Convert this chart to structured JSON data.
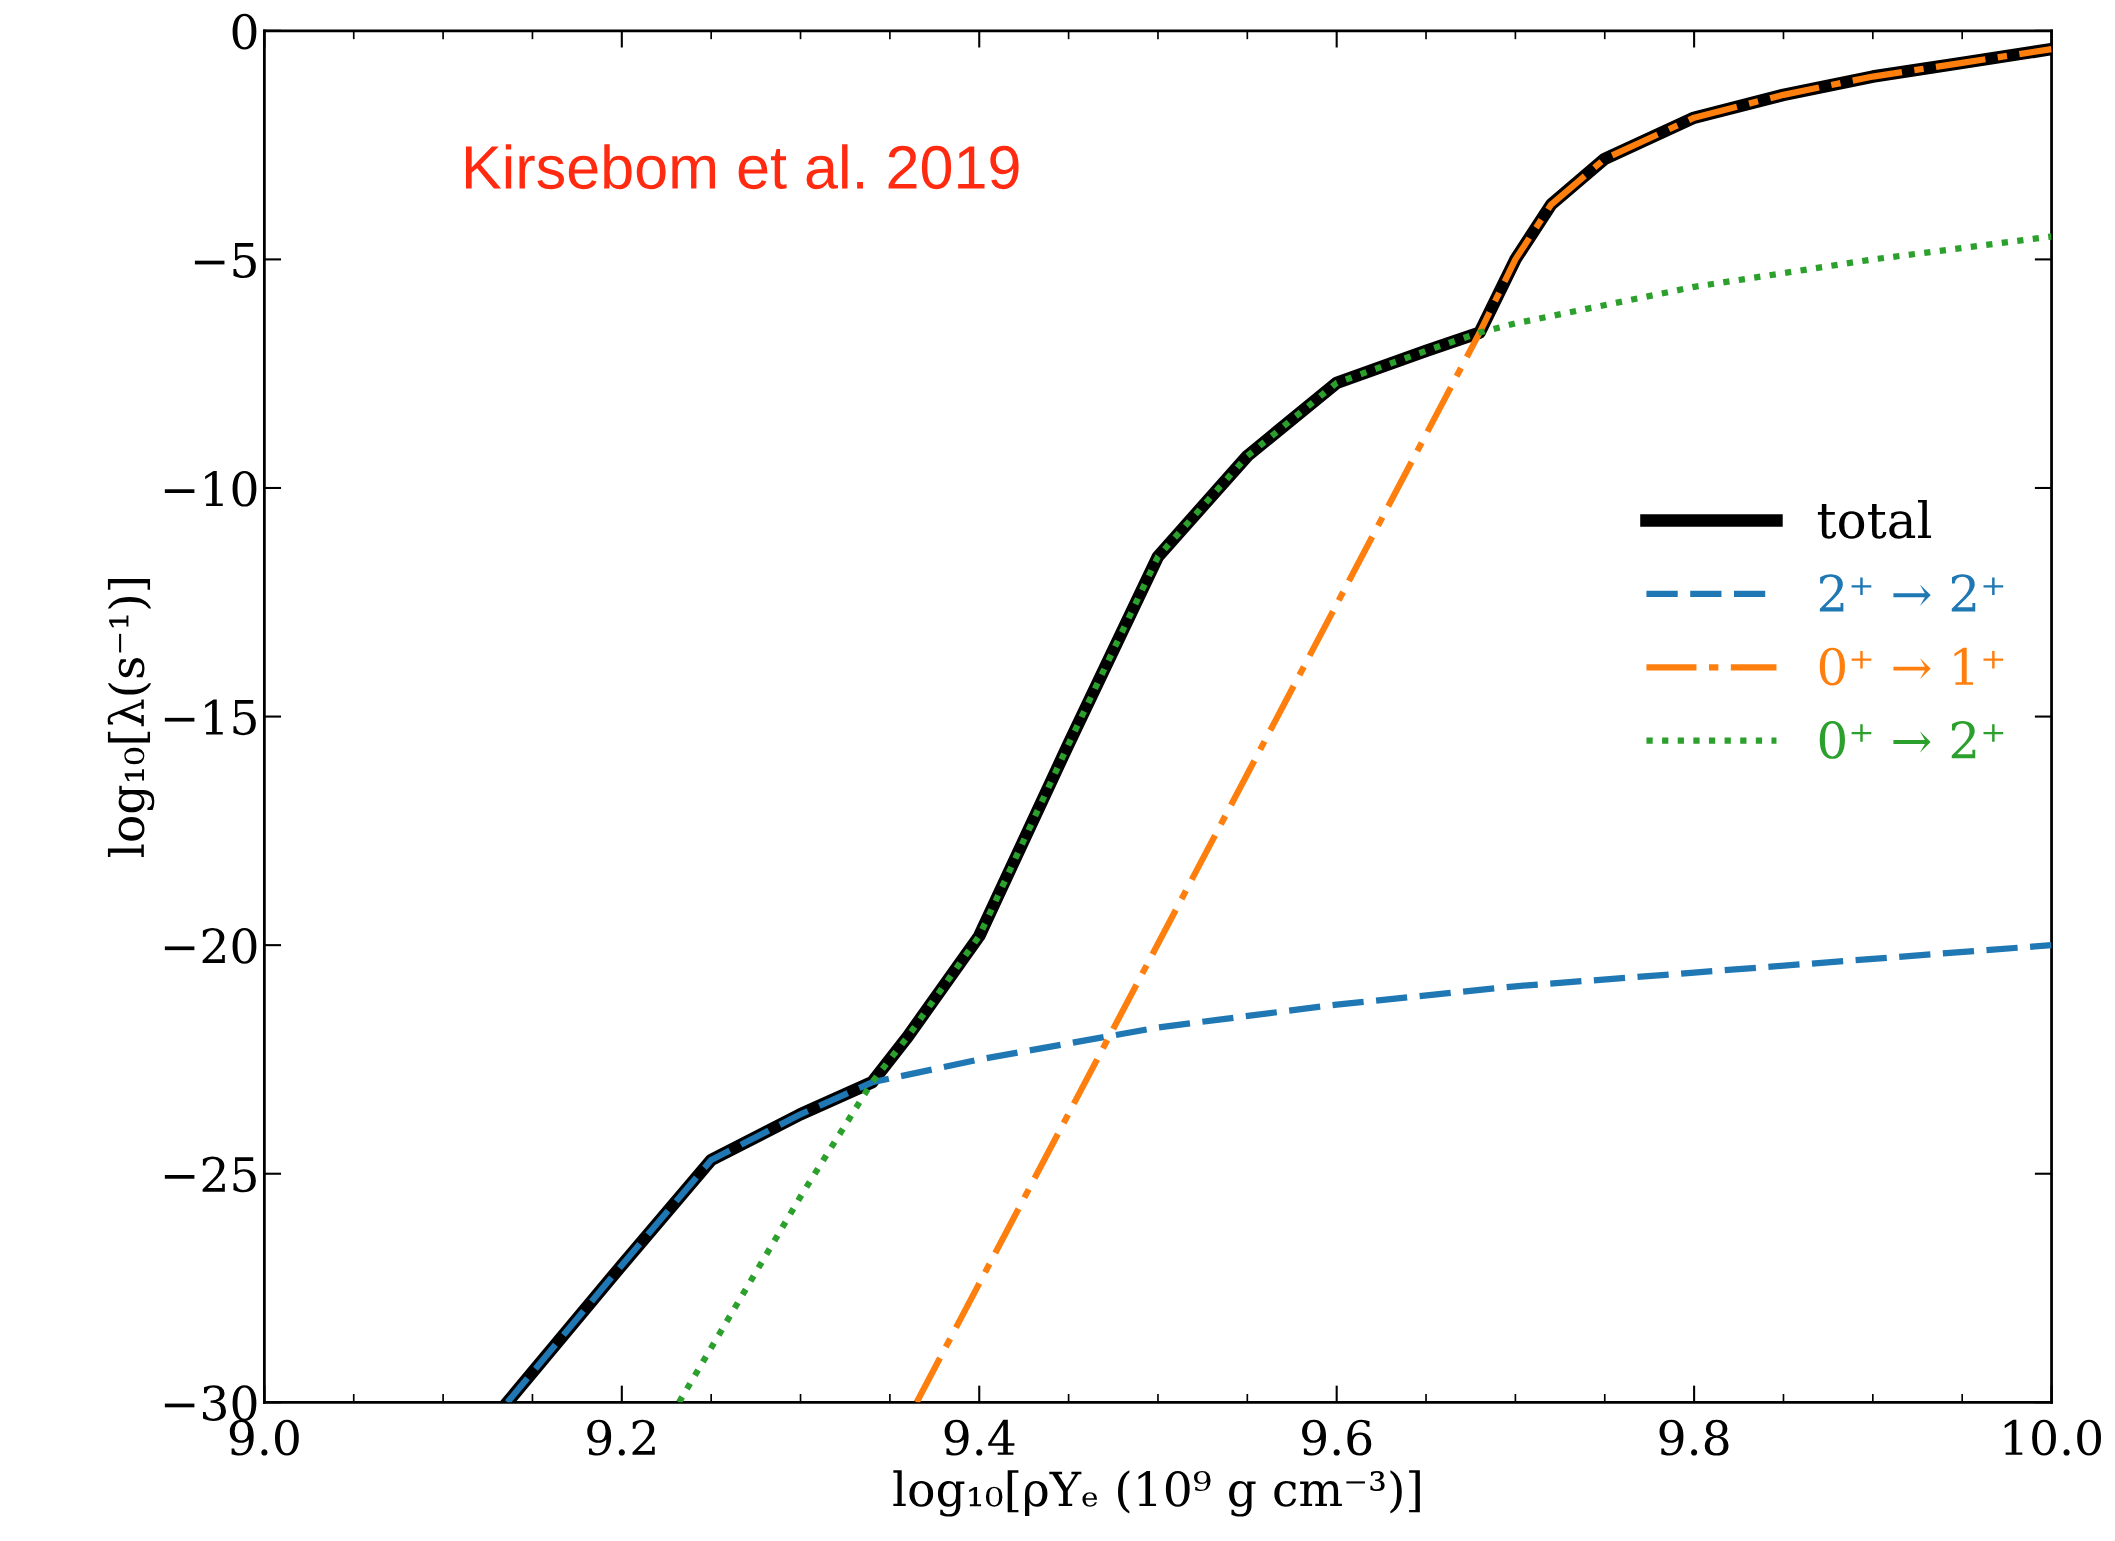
{
  "chart_data": {
    "type": "line",
    "xlabel": "log₁₀[ρYₑ (10⁹ g cm⁻³)]",
    "ylabel": "log₁₀[λ(s⁻¹)]",
    "annotations": [
      "Kirsebom et al. 2019"
    ],
    "xlim": [
      9.0,
      10.0
    ],
    "ylim": [
      -30,
      0
    ],
    "xticks": [
      {
        "value": 9.0,
        "label": "9.0"
      },
      {
        "value": 9.2,
        "label": "9.2"
      },
      {
        "value": 9.4,
        "label": "9.4"
      },
      {
        "value": 9.6,
        "label": "9.6"
      },
      {
        "value": 9.8,
        "label": "9.8"
      },
      {
        "value": 10.0,
        "label": "10.0"
      }
    ],
    "yticks": [
      {
        "value": -30,
        "label": "−30"
      },
      {
        "value": -25,
        "label": "−25"
      },
      {
        "value": -20,
        "label": "−20"
      },
      {
        "value": -15,
        "label": "−15"
      },
      {
        "value": -10,
        "label": "−10"
      },
      {
        "value": -5,
        "label": "−5"
      },
      {
        "value": 0,
        "label": "0"
      }
    ],
    "grid": false,
    "legend": "right",
    "marker": "none",
    "series": [
      {
        "name": "total",
        "color": "#000000",
        "line_style": "solid",
        "x": [
          9.136,
          9.2,
          9.25,
          9.3,
          9.34,
          9.36,
          9.4,
          9.45,
          9.5,
          9.55,
          9.6,
          9.65,
          9.68,
          9.7,
          9.72,
          9.75,
          9.8,
          9.85,
          9.9,
          9.95,
          10.0
        ],
        "values": [
          -30,
          -27,
          -24.7,
          -23.7,
          -23,
          -22,
          -19.8,
          -15.6,
          -11.5,
          -9.3,
          -7.7,
          -7.0,
          -6.6,
          -5.0,
          -3.8,
          -2.8,
          -1.9,
          -1.4,
          -1.0,
          -0.7,
          -0.4
        ]
      },
      {
        "name": "2⁺ → 2⁺",
        "color": "#1f77b4",
        "line_style": "dashed",
        "x": [
          9.136,
          9.2,
          9.25,
          9.3,
          9.34,
          9.4,
          9.5,
          9.6,
          9.7,
          9.8,
          9.9,
          10.0
        ],
        "values": [
          -30,
          -27,
          -24.7,
          -23.7,
          -23,
          -22.5,
          -21.8,
          -21.3,
          -20.9,
          -20.6,
          -20.3,
          -20.0
        ]
      },
      {
        "name": "0⁺ → 1⁺",
        "color": "#ff7f0e",
        "line_style": "dashdot",
        "x": [
          9.365,
          9.68,
          9.7,
          9.72,
          9.75,
          9.8,
          9.85,
          9.9,
          9.95,
          10.0
        ],
        "values": [
          -30,
          -6.6,
          -5.0,
          -3.8,
          -2.8,
          -1.9,
          -1.4,
          -1.0,
          -0.7,
          -0.4
        ]
      },
      {
        "name": "0⁺ → 2⁺",
        "color": "#2ca02c",
        "line_style": "dotted",
        "x": [
          9.232,
          9.3,
          9.34,
          9.36,
          9.4,
          9.45,
          9.5,
          9.55,
          9.6,
          9.65,
          9.68,
          9.7,
          9.8,
          9.9,
          10.0
        ],
        "values": [
          -30,
          -25.5,
          -23,
          -22,
          -19.8,
          -15.6,
          -11.5,
          -9.3,
          -7.7,
          -7.0,
          -6.6,
          -6.4,
          -5.6,
          -5.0,
          -4.5
        ]
      }
    ]
  }
}
